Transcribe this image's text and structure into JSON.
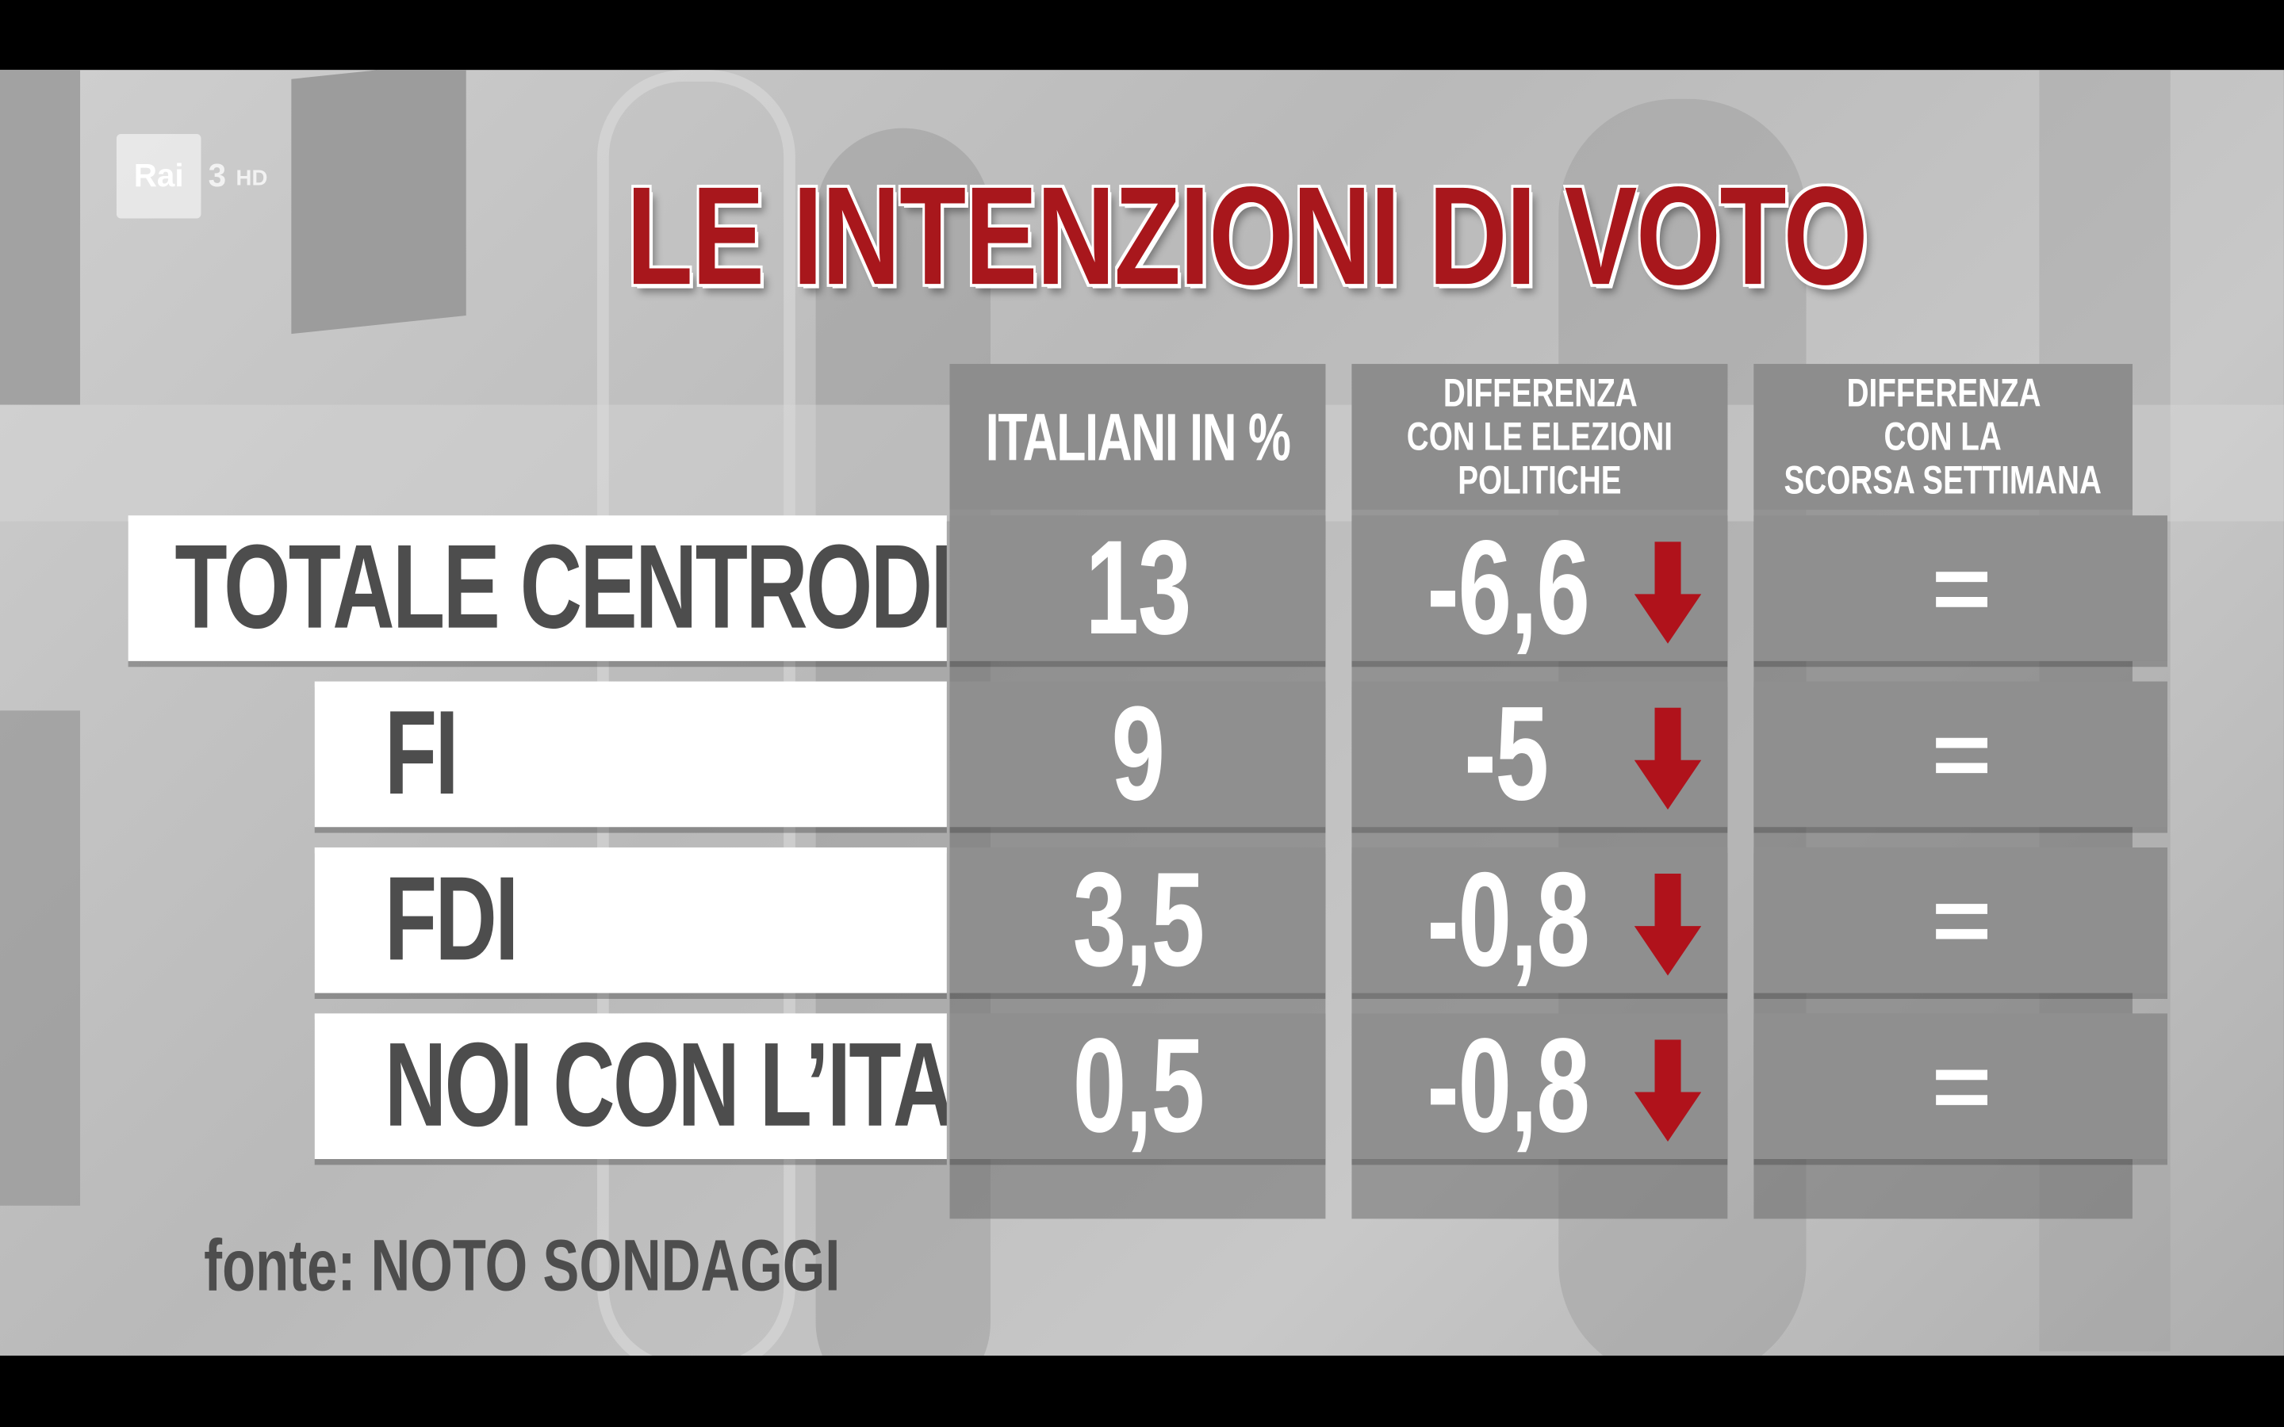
{
  "channel": {
    "logo_text": "Rai",
    "number": "3",
    "hd": "HD"
  },
  "title": "LE INTENZIONI DI VOTO",
  "source": "fonte: NOTO SONDAGGI",
  "colors": {
    "title_red": "#a8171c",
    "arrow_red": "#b0121b",
    "label_text": "#4d4d4d"
  },
  "chart_data": {
    "type": "table",
    "title": "LE INTENZIONI DI VOTO",
    "columns": [
      "ITALIANI IN %",
      "DIFFERENZA CON LE ELEZIONI POLITICHE",
      "DIFFERENZA CON LA SCORSA SETTIMANA"
    ],
    "column_lines": [
      [
        "ITALIANI IN %"
      ],
      [
        "DIFFERENZA",
        "CON LE ELEZIONI",
        "POLITICHE"
      ],
      [
        "DIFFERENZA",
        "CON LA",
        "SCORSA SETTIMANA"
      ]
    ],
    "rows": [
      {
        "label": "TOTALE CENTRODESTRA",
        "italiani_pct": "13",
        "diff_elezioni": "-6,6",
        "diff_trend": "down-arrow",
        "diff_settimana": "="
      },
      {
        "label": "FI",
        "italiani_pct": "9",
        "diff_elezioni": "-5",
        "diff_trend": "down-arrow",
        "diff_settimana": "="
      },
      {
        "label": "FDI",
        "italiani_pct": "3,5",
        "diff_elezioni": "-0,8",
        "diff_trend": "down-arrow",
        "diff_settimana": "="
      },
      {
        "label": "NOI CON L’ITALIA",
        "italiani_pct": "0,5",
        "diff_elezioni": "-0,8",
        "diff_trend": "down-arrow",
        "diff_settimana": "="
      }
    ]
  }
}
